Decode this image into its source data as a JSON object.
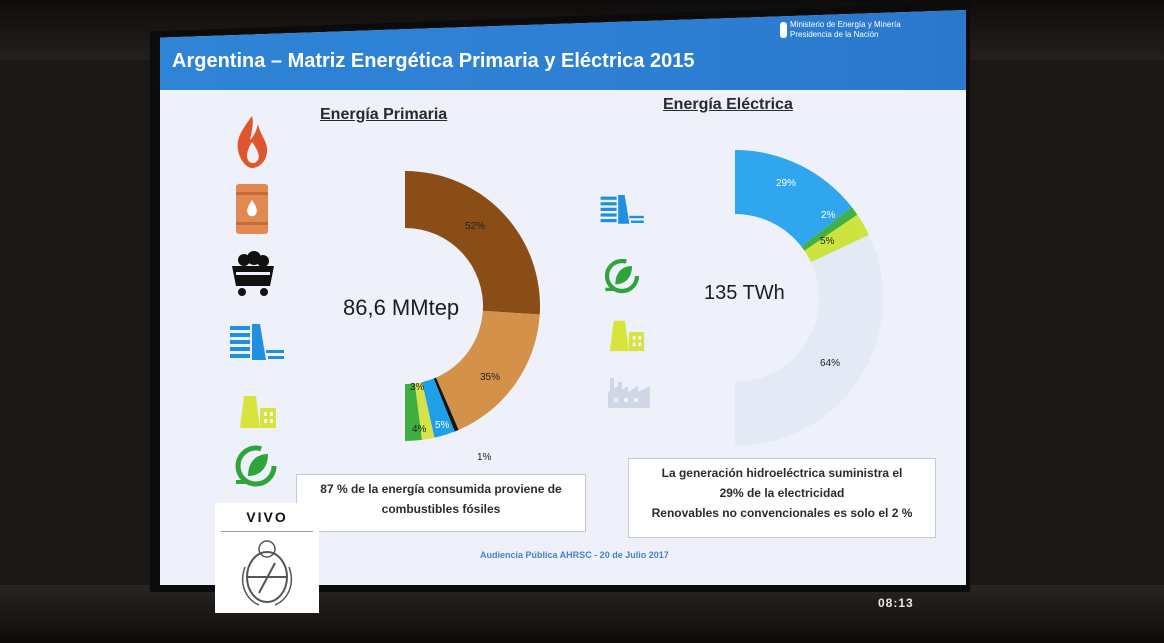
{
  "slide": {
    "title": "Argentina – Matriz Energética Primaria y Eléctrica 2015",
    "ministry_line1": "Ministerio de Energía y Minería",
    "ministry_line2": "Presidencia de la Nación",
    "footer": "Audiencia Pública AHRSC - 20 de Julio 2017"
  },
  "primaria": {
    "title": "Energía Primaria",
    "center": "86,6 MMtep",
    "labels": {
      "gas": "52%",
      "oil": "35%",
      "hydro": "5%",
      "renew": "4%",
      "coal": "1%",
      "nuclear": "3%"
    },
    "note_line1": "87 % de la energía consumida proviene de",
    "note_line2": "combustibles fósiles"
  },
  "electrica": {
    "title": "Energía Eléctrica",
    "center": "135 TWh",
    "labels": {
      "hydro": "29%",
      "renew": "2%",
      "nuclear": "5%",
      "thermal": "64%"
    },
    "note_line1": "La generación hidroeléctrica suministra el",
    "note_line2": "29% de la electricidad",
    "note_line3": "Renovables no convencionales es  solo el 2 %"
  },
  "overlay": {
    "live": "VIVO",
    "clock": "08:13"
  },
  "icons": [
    "gas-flame-icon",
    "oil-barrel-icon",
    "coal-cart-icon",
    "hydro-dam-icon",
    "nuclear-plant-icon",
    "renewable-leaf-icon",
    "thermal-factory-icon"
  ],
  "chart_data": [
    {
      "type": "pie",
      "title": "Energía Primaria",
      "center_label": "86,6 MMtep",
      "categories": [
        "Gas",
        "Petróleo",
        "Carbón",
        "Hidro",
        "Nuclear",
        "Renovables"
      ],
      "values": [
        52,
        35,
        1,
        5,
        3,
        4
      ],
      "colors": [
        "#8a4d16",
        "#d3914a",
        "#141414",
        "#1f9fe8",
        "#d5e34a",
        "#3fae3f"
      ]
    },
    {
      "type": "pie",
      "title": "Energía Eléctrica",
      "center_label": "135 TWh",
      "categories": [
        "Hidro",
        "Renovables",
        "Nuclear",
        "Térmica"
      ],
      "values": [
        29,
        2,
        5,
        64
      ],
      "colors": [
        "#2fa6ee",
        "#43b043",
        "#cde43f",
        "#e4e9f6"
      ]
    }
  ]
}
